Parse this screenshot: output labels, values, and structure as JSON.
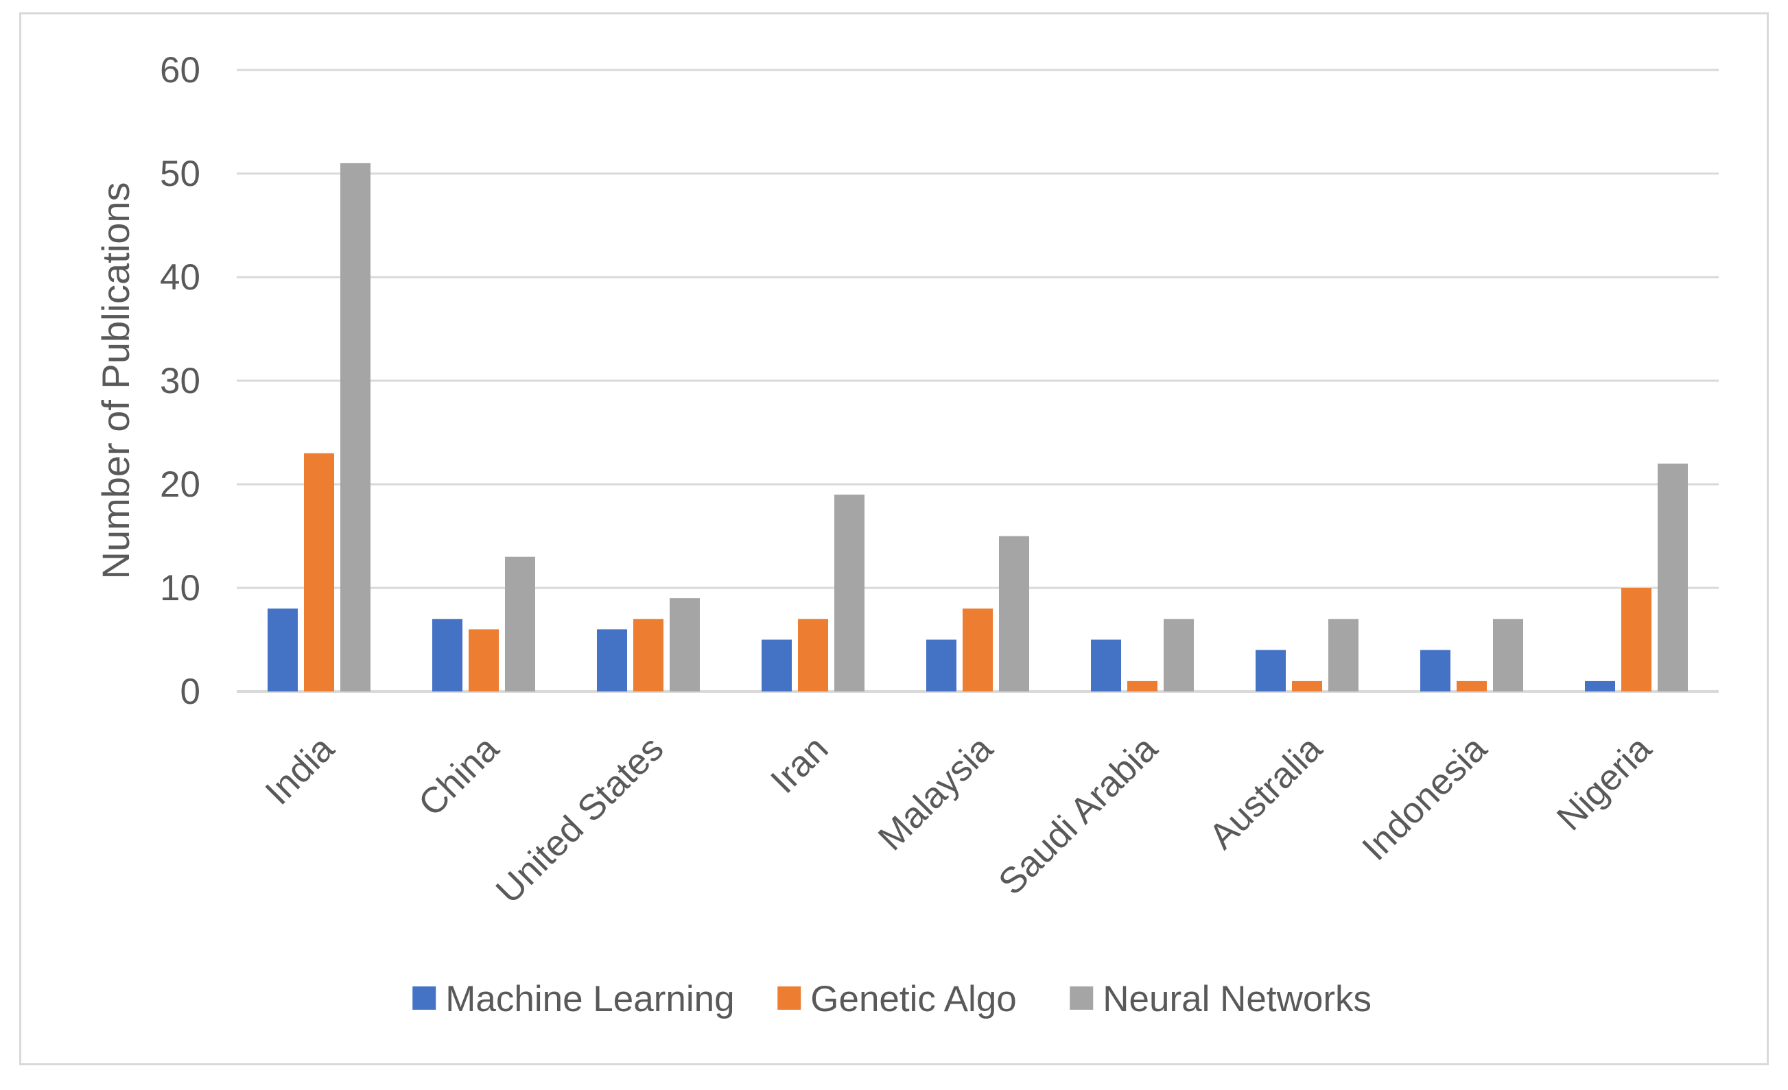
{
  "chart_data": {
    "type": "bar",
    "title": "",
    "xlabel": "",
    "ylabel": "Number of Publications",
    "ylim": [
      0,
      60
    ],
    "yticks": [
      0,
      10,
      20,
      30,
      40,
      50,
      60
    ],
    "grid": true,
    "legend_position": "bottom",
    "categories": [
      "India",
      "China",
      "United States",
      "Iran",
      "Malaysia",
      "Saudi Arabia",
      "Australia",
      "Indonesia",
      "Nigeria"
    ],
    "series": [
      {
        "name": "Machine Learning",
        "color": "#4472c4",
        "values": [
          8,
          7,
          6,
          5,
          5,
          5,
          4,
          4,
          1
        ]
      },
      {
        "name": "Genetic Algo",
        "color": "#ed7d31",
        "values": [
          23,
          6,
          7,
          7,
          8,
          1,
          1,
          1,
          10
        ]
      },
      {
        "name": "Neural Networks",
        "color": "#a5a5a5",
        "values": [
          51,
          13,
          9,
          19,
          15,
          7,
          7,
          7,
          22
        ]
      }
    ]
  }
}
